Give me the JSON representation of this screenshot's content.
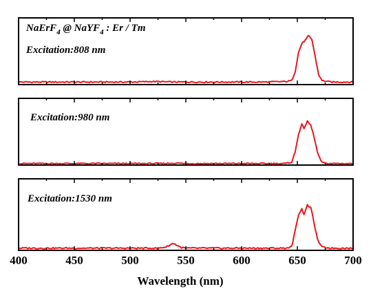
{
  "chart_data": {
    "type": "line",
    "xlabel": "Wavelength (nm)",
    "xlim": [
      400,
      700
    ],
    "x_ticks": [
      "400",
      "450",
      "500",
      "550",
      "600",
      "650",
      "700"
    ],
    "line_color": "#e8141c",
    "sample_label": {
      "main_a": "NaErF",
      "sub_a": "4",
      "main_b": " @ NaYF",
      "sub_b": "4",
      "main_c": " : Er / Tm"
    },
    "panels": [
      {
        "label": "Excitation:808 nm",
        "ylim": [
          0,
          1.3
        ],
        "points": [
          [
            400,
            0.05
          ],
          [
            420,
            0.05
          ],
          [
            440,
            0.05
          ],
          [
            460,
            0.05
          ],
          [
            480,
            0.05
          ],
          [
            500,
            0.05
          ],
          [
            520,
            0.06
          ],
          [
            540,
            0.05
          ],
          [
            560,
            0.05
          ],
          [
            580,
            0.05
          ],
          [
            600,
            0.05
          ],
          [
            620,
            0.05
          ],
          [
            640,
            0.06
          ],
          [
            645,
            0.08
          ],
          [
            648,
            0.25
          ],
          [
            651,
            0.62
          ],
          [
            654,
            0.8
          ],
          [
            657,
            0.86
          ],
          [
            660,
            0.95
          ],
          [
            663,
            0.88
          ],
          [
            666,
            0.55
          ],
          [
            669,
            0.2
          ],
          [
            672,
            0.08
          ],
          [
            680,
            0.05
          ],
          [
            700,
            0.05
          ]
        ]
      },
      {
        "label": "Excitation:980 nm",
        "ylim": [
          0,
          1.3
        ],
        "points": [
          [
            400,
            0.03
          ],
          [
            450,
            0.03
          ],
          [
            500,
            0.03
          ],
          [
            530,
            0.03
          ],
          [
            540,
            0.04
          ],
          [
            550,
            0.03
          ],
          [
            600,
            0.03
          ],
          [
            640,
            0.03
          ],
          [
            645,
            0.06
          ],
          [
            648,
            0.25
          ],
          [
            651,
            0.6
          ],
          [
            654,
            0.79
          ],
          [
            656,
            0.72
          ],
          [
            659,
            0.85
          ],
          [
            662,
            0.78
          ],
          [
            665,
            0.55
          ],
          [
            668,
            0.25
          ],
          [
            671,
            0.08
          ],
          [
            675,
            0.03
          ],
          [
            700,
            0.03
          ]
        ]
      },
      {
        "label": "Excitation:1530 nm",
        "ylim": [
          0,
          1.3
        ],
        "points": [
          [
            400,
            0.04
          ],
          [
            450,
            0.04
          ],
          [
            500,
            0.04
          ],
          [
            525,
            0.04
          ],
          [
            532,
            0.06
          ],
          [
            536,
            0.1
          ],
          [
            539,
            0.13
          ],
          [
            542,
            0.09
          ],
          [
            546,
            0.05
          ],
          [
            550,
            0.04
          ],
          [
            600,
            0.04
          ],
          [
            640,
            0.04
          ],
          [
            645,
            0.07
          ],
          [
            648,
            0.35
          ],
          [
            651,
            0.65
          ],
          [
            654,
            0.75
          ],
          [
            656,
            0.66
          ],
          [
            659,
            0.82
          ],
          [
            662,
            0.78
          ],
          [
            665,
            0.5
          ],
          [
            668,
            0.2
          ],
          [
            672,
            0.06
          ],
          [
            680,
            0.04
          ],
          [
            700,
            0.04
          ]
        ]
      }
    ]
  }
}
